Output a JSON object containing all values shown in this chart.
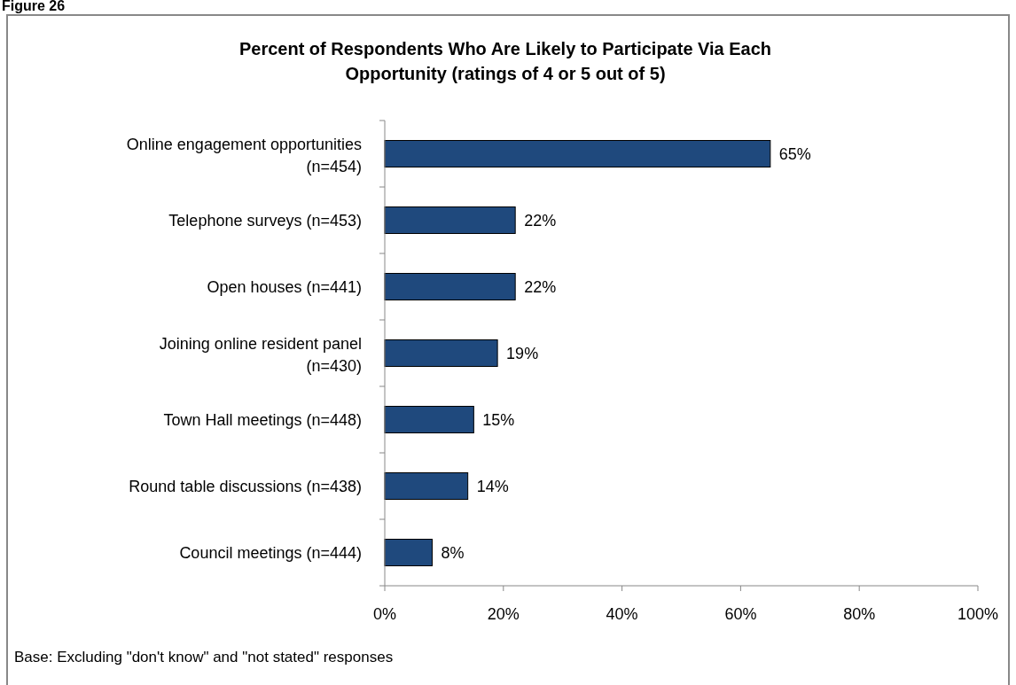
{
  "chart_data": {
    "type": "bar",
    "orientation": "horizontal",
    "title": "Percent of Respondents Who Are Likely to Participate Via Each Opportunity (ratings of 4 or 5 out of 5)",
    "categories": [
      "Online engagement opportunities (n=454)",
      "Telephone surveys (n=453)",
      "Open houses (n=441)",
      "Joining online resident panel (n=430)",
      "Town Hall meetings (n=448)",
      "Round table discussions (n=438)",
      "Council meetings (n=444)"
    ],
    "values": [
      65,
      22,
      22,
      19,
      15,
      14,
      8
    ],
    "color": "#1f497d",
    "value_labels": [
      "65%",
      "22%",
      "22%",
      "19%",
      "15%",
      "14%",
      "8%"
    ],
    "xlim": [
      0,
      100
    ],
    "xticks": [
      {
        "value": 0,
        "label": "0%"
      },
      {
        "value": 20,
        "label": "20%"
      },
      {
        "value": 40,
        "label": "40%"
      },
      {
        "value": 60,
        "label": "60%"
      },
      {
        "value": 80,
        "label": "80%"
      },
      {
        "value": 100,
        "label": "100%"
      }
    ],
    "grid": false,
    "annotations": [
      "Figure 26",
      "Base: Excluding \"don't know\" and \"not stated\" responses"
    ]
  }
}
